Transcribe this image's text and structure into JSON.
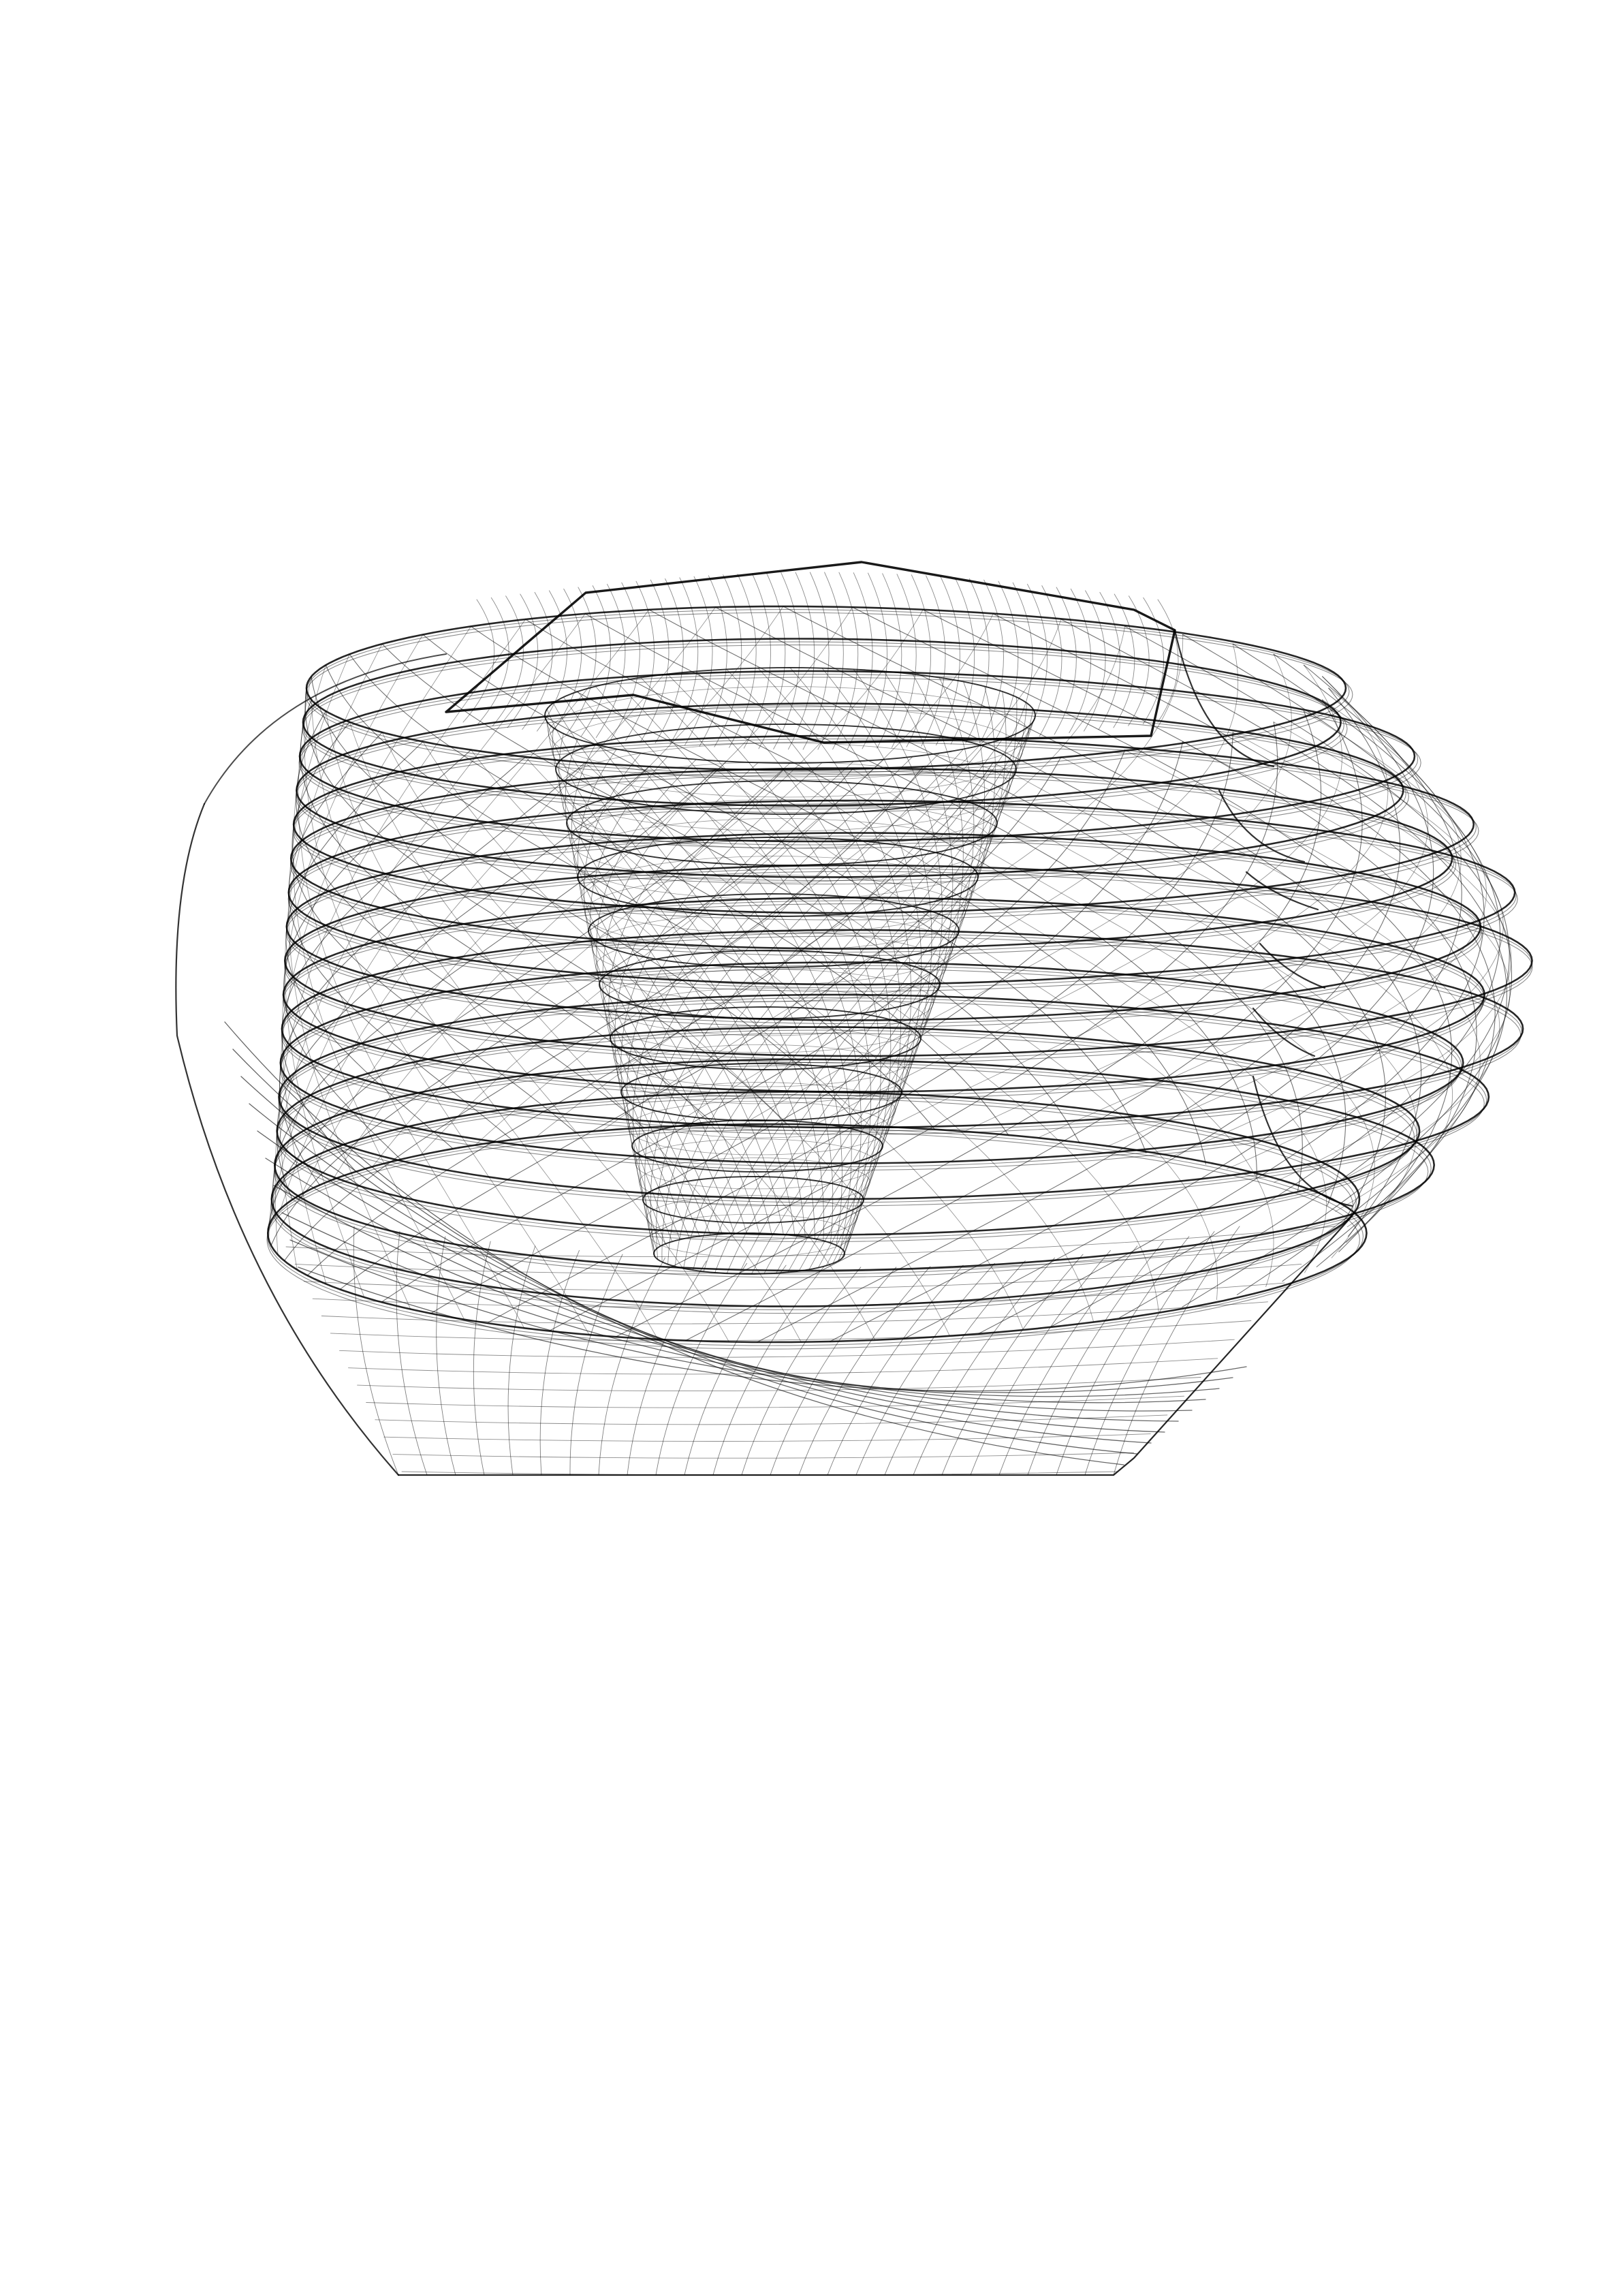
{
  "page": {
    "background_color": "#ffffff"
  },
  "figure": {
    "subject": "wireframe-vessel",
    "line_color": "#000000",
    "thread_turns": 7,
    "mesh_segments_around": 96,
    "mesh_strands": 44,
    "inner_cone_turns": 10
  }
}
